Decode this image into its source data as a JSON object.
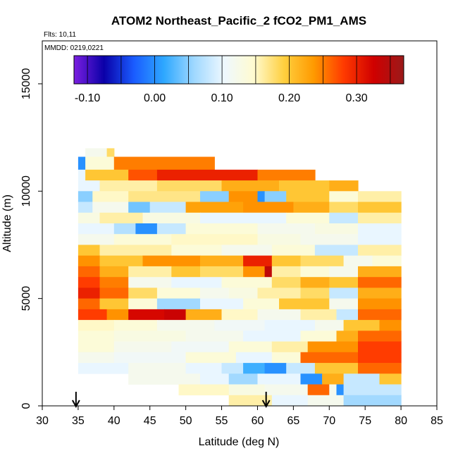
{
  "chart_data": {
    "type": "heatmap",
    "title": "ATOM2 Northeast_Pacific_2 fCO2_PM1_AMS",
    "flights": "Flts: 10,11",
    "dates": "MMDD: 0219,0221",
    "xlabel": "Latitude (deg N)",
    "ylabel": "Altitude (m)",
    "xlim": [
      30,
      85
    ],
    "ylim": [
      0,
      17000
    ],
    "x_ticks": [
      30,
      35,
      40,
      45,
      50,
      55,
      60,
      65,
      70,
      75,
      80,
      85
    ],
    "y_ticks": [
      0,
      5000,
      10000,
      15000
    ],
    "colorbar": {
      "range": [
        -0.12,
        0.37
      ],
      "ticks": [
        -0.1,
        0.0,
        0.1,
        0.2,
        0.3
      ],
      "tick_labels": [
        "-0.10",
        "0.00",
        "0.10",
        "0.20",
        "0.30"
      ],
      "colors": [
        "#7b1fe0",
        "#0a00a8",
        "#1a5cff",
        "#2ea8ff",
        "#9fd8ff",
        "#eef8ff",
        "#fffbd0",
        "#ffd040",
        "#ff9a00",
        "#ff3a00",
        "#d00000",
        "#9a1a1a"
      ]
    },
    "markers": {
      "arrow_latitudes": [
        34.7,
        61.2
      ]
    },
    "bands": [
      {
        "y0": 11600,
        "y1": 12000,
        "cells": [
          [
            36,
            39,
            0.12
          ],
          [
            39,
            40,
            0.18
          ]
        ]
      },
      {
        "y0": 11000,
        "y1": 11600,
        "cells": [
          [
            35,
            36,
            0.0
          ],
          [
            36,
            40,
            0.14
          ],
          [
            40,
            54,
            0.25
          ]
        ]
      },
      {
        "y0": 10500,
        "y1": 11000,
        "cells": [
          [
            35,
            36,
            0.1
          ],
          [
            36,
            42,
            0.2
          ],
          [
            42,
            46,
            0.27
          ],
          [
            46,
            60,
            0.3
          ],
          [
            60,
            68,
            0.25
          ]
        ]
      },
      {
        "y0": 10000,
        "y1": 10500,
        "cells": [
          [
            35,
            38,
            0.1
          ],
          [
            38,
            46,
            0.16
          ],
          [
            46,
            55,
            0.18
          ],
          [
            55,
            63,
            0.22
          ],
          [
            63,
            70,
            0.2
          ],
          [
            70,
            74,
            0.22
          ]
        ]
      },
      {
        "y0": 9500,
        "y1": 10000,
        "cells": [
          [
            35,
            37,
            0.05
          ],
          [
            37,
            42,
            0.15
          ],
          [
            42,
            52,
            0.17
          ],
          [
            52,
            56,
            0.05
          ],
          [
            56,
            60,
            0.24
          ],
          [
            60,
            61,
            0.0
          ],
          [
            61,
            64,
            0.05
          ],
          [
            64,
            70,
            0.2
          ],
          [
            70,
            74,
            0.14
          ],
          [
            74,
            80,
            0.16
          ]
        ]
      },
      {
        "y0": 9000,
        "y1": 9500,
        "cells": [
          [
            35,
            37,
            0.08
          ],
          [
            37,
            42,
            0.12
          ],
          [
            42,
            45,
            0.04
          ],
          [
            45,
            50,
            0.08
          ],
          [
            50,
            58,
            0.23
          ],
          [
            58,
            65,
            0.24
          ],
          [
            65,
            70,
            0.22
          ],
          [
            70,
            74,
            0.18
          ],
          [
            74,
            80,
            0.2
          ]
        ]
      },
      {
        "y0": 8500,
        "y1": 9000,
        "cells": [
          [
            35,
            38,
            0.13
          ],
          [
            38,
            44,
            0.16
          ],
          [
            44,
            52,
            0.13
          ],
          [
            52,
            64,
            0.1
          ],
          [
            64,
            70,
            0.14
          ],
          [
            70,
            74,
            0.08
          ],
          [
            74,
            80,
            0.16
          ]
        ]
      },
      {
        "y0": 8000,
        "y1": 8500,
        "cells": [
          [
            35,
            40,
            0.1
          ],
          [
            40,
            43,
            0.07
          ],
          [
            43,
            46,
            0.0
          ],
          [
            46,
            50,
            0.08
          ],
          [
            50,
            60,
            0.14
          ],
          [
            60,
            68,
            0.12
          ],
          [
            68,
            74,
            0.13
          ],
          [
            74,
            80,
            0.1
          ]
        ]
      },
      {
        "y0": 7500,
        "y1": 8000,
        "cells": [
          [
            35,
            40,
            0.12
          ],
          [
            40,
            48,
            0.14
          ],
          [
            48,
            60,
            0.15
          ],
          [
            60,
            66,
            0.13
          ],
          [
            66,
            74,
            0.12
          ],
          [
            74,
            80,
            0.1
          ]
        ]
      },
      {
        "y0": 7000,
        "y1": 7500,
        "cells": [
          [
            35,
            38,
            0.2
          ],
          [
            38,
            48,
            0.16
          ],
          [
            48,
            55,
            0.14
          ],
          [
            55,
            62,
            0.12
          ],
          [
            62,
            68,
            0.14
          ],
          [
            68,
            74,
            0.08
          ],
          [
            74,
            80,
            0.16
          ]
        ]
      },
      {
        "y0": 6500,
        "y1": 7000,
        "cells": [
          [
            35,
            38,
            0.24
          ],
          [
            38,
            44,
            0.2
          ],
          [
            44,
            52,
            0.24
          ],
          [
            52,
            58,
            0.22
          ],
          [
            58,
            62,
            0.3
          ],
          [
            62,
            66,
            0.2
          ],
          [
            66,
            72,
            0.18
          ],
          [
            72,
            76,
            0.12
          ],
          [
            76,
            80,
            0.14
          ]
        ]
      },
      {
        "y0": 6000,
        "y1": 6500,
        "cells": [
          [
            35,
            38,
            0.26
          ],
          [
            38,
            42,
            0.22
          ],
          [
            42,
            48,
            0.16
          ],
          [
            48,
            52,
            0.2
          ],
          [
            52,
            58,
            0.18
          ],
          [
            58,
            61,
            0.24
          ],
          [
            61,
            62,
            0.34
          ],
          [
            62,
            66,
            0.16
          ],
          [
            66,
            70,
            0.14
          ],
          [
            70,
            74,
            0.12
          ],
          [
            74,
            80,
            0.22
          ]
        ]
      },
      {
        "y0": 5500,
        "y1": 6000,
        "cells": [
          [
            35,
            38,
            0.28
          ],
          [
            38,
            42,
            0.25
          ],
          [
            42,
            48,
            0.12
          ],
          [
            48,
            55,
            0.1
          ],
          [
            55,
            62,
            0.14
          ],
          [
            62,
            66,
            0.18
          ],
          [
            66,
            70,
            0.22
          ],
          [
            70,
            74,
            0.2
          ],
          [
            74,
            80,
            0.26
          ]
        ]
      },
      {
        "y0": 5000,
        "y1": 5500,
        "cells": [
          [
            35,
            38,
            0.3
          ],
          [
            38,
            42,
            0.26
          ],
          [
            42,
            46,
            0.18
          ],
          [
            46,
            52,
            0.14
          ],
          [
            52,
            56,
            0.12
          ],
          [
            56,
            60,
            0.13
          ],
          [
            60,
            66,
            0.16
          ],
          [
            66,
            70,
            0.18
          ],
          [
            70,
            74,
            0.08
          ],
          [
            74,
            80,
            0.22
          ]
        ]
      },
      {
        "y0": 4500,
        "y1": 5000,
        "cells": [
          [
            35,
            38,
            0.26
          ],
          [
            38,
            42,
            0.2
          ],
          [
            42,
            46,
            0.14
          ],
          [
            46,
            52,
            0.06
          ],
          [
            52,
            58,
            0.1
          ],
          [
            58,
            63,
            0.14
          ],
          [
            63,
            70,
            0.2
          ],
          [
            70,
            74,
            0.12
          ],
          [
            74,
            80,
            0.24
          ]
        ]
      },
      {
        "y0": 4000,
        "y1": 4500,
        "cells": [
          [
            35,
            39,
            0.28
          ],
          [
            39,
            42,
            0.24
          ],
          [
            42,
            47,
            0.32
          ],
          [
            47,
            50,
            0.33
          ],
          [
            50,
            55,
            0.22
          ],
          [
            55,
            60,
            0.15
          ],
          [
            60,
            66,
            0.12
          ],
          [
            66,
            71,
            0.16
          ],
          [
            71,
            74,
            0.08
          ],
          [
            74,
            80,
            0.26
          ]
        ]
      },
      {
        "y0": 3500,
        "y1": 4000,
        "cells": [
          [
            35,
            40,
            0.15
          ],
          [
            40,
            46,
            0.14
          ],
          [
            46,
            54,
            0.12
          ],
          [
            54,
            61,
            0.11
          ],
          [
            61,
            68,
            0.1
          ],
          [
            68,
            72,
            0.12
          ],
          [
            72,
            77,
            0.2
          ],
          [
            77,
            80,
            0.24
          ]
        ]
      },
      {
        "y0": 3000,
        "y1": 3500,
        "cells": [
          [
            35,
            40,
            0.14
          ],
          [
            40,
            50,
            0.13
          ],
          [
            50,
            58,
            0.12
          ],
          [
            58,
            66,
            0.1
          ],
          [
            66,
            71,
            0.14
          ],
          [
            71,
            74,
            0.22
          ],
          [
            74,
            80,
            0.26
          ]
        ]
      },
      {
        "y0": 2500,
        "y1": 3000,
        "cells": [
          [
            35,
            40,
            0.14
          ],
          [
            40,
            48,
            0.12
          ],
          [
            48,
            56,
            0.11
          ],
          [
            56,
            62,
            0.14
          ],
          [
            62,
            67,
            0.16
          ],
          [
            67,
            74,
            0.24
          ],
          [
            74,
            80,
            0.28
          ]
        ]
      },
      {
        "y0": 2000,
        "y1": 2500,
        "cells": [
          [
            35,
            40,
            0.12
          ],
          [
            40,
            50,
            0.11
          ],
          [
            50,
            57,
            0.14
          ],
          [
            57,
            62,
            0.1
          ],
          [
            62,
            66,
            0.14
          ],
          [
            66,
            74,
            0.26
          ],
          [
            74,
            80,
            0.28
          ]
        ]
      },
      {
        "y0": 1500,
        "y1": 2000,
        "cells": [
          [
            35,
            42,
            0.1
          ],
          [
            42,
            50,
            0.12
          ],
          [
            50,
            55,
            0.1
          ],
          [
            55,
            58,
            0.08
          ],
          [
            58,
            61,
            0.02
          ],
          [
            61,
            64,
            0.0
          ],
          [
            64,
            68,
            0.08
          ],
          [
            68,
            74,
            0.2
          ],
          [
            74,
            80,
            0.26
          ]
        ]
      },
      {
        "y0": 1000,
        "y1": 1500,
        "cells": [
          [
            42,
            52,
            0.12
          ],
          [
            52,
            56,
            0.1
          ],
          [
            56,
            60,
            0.06
          ],
          [
            60,
            66,
            0.1
          ],
          [
            66,
            69,
            0.0
          ],
          [
            69,
            72,
            0.22
          ],
          [
            72,
            77,
            0.08
          ],
          [
            77,
            80,
            0.2
          ]
        ]
      },
      {
        "y0": 500,
        "y1": 1000,
        "cells": [
          [
            49,
            56,
            0.15
          ],
          [
            56,
            61,
            0.13
          ],
          [
            61,
            67,
            0.12
          ],
          [
            67,
            70,
            0.26
          ],
          [
            70,
            71,
            0.12
          ],
          [
            71,
            72,
            0.0
          ],
          [
            72,
            80,
            0.08
          ]
        ]
      },
      {
        "y0": 0,
        "y1": 500,
        "cells": [
          [
            56,
            62,
            0.16
          ],
          [
            62,
            67,
            0.1
          ],
          [
            67,
            72,
            0.12
          ],
          [
            72,
            80,
            0.06
          ]
        ]
      }
    ]
  }
}
